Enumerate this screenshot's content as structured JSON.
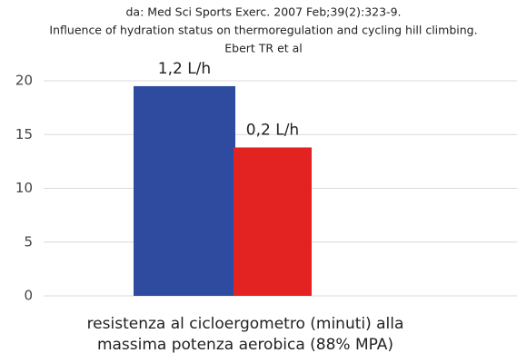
{
  "chart_data": {
    "type": "bar",
    "title": [
      "da: Med Sci Sports Exerc. 2007 Feb;39(2):323-9.",
      "Influence of hydration status on thermoregulation and cycling hill climbing.",
      "Ebert TR et al"
    ],
    "categories": [
      null,
      null
    ],
    "series": [
      {
        "values": [
          19.5,
          13.8
        ],
        "colors": [
          "#2e4b9f",
          "#e32222"
        ]
      }
    ],
    "annotations": [
      "1,2 L/h",
      "0,2 L/h"
    ],
    "xlabel": [
      "resistenza al cicloergometro (minuti) alla",
      "massima potenza aerobica (88% MPA)"
    ],
    "ylim": [
      0,
      20
    ],
    "yticks": [
      0,
      5,
      10,
      15,
      20
    ],
    "grid": true
  }
}
